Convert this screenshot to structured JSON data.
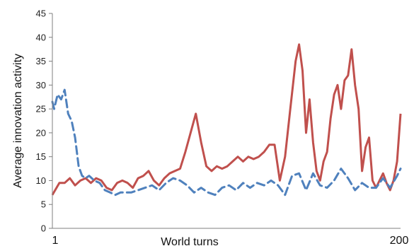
{
  "chart_data": {
    "type": "line",
    "xlabel": "World turns",
    "ylabel": "Average innovation activity",
    "xlim": [
      1,
      200
    ],
    "ylim": [
      0,
      45
    ],
    "y_ticks": [
      "0",
      "5",
      "10",
      "15",
      "20",
      "25",
      "30",
      "35",
      "40",
      "45"
    ],
    "x_tick_labels": [
      "1",
      "200"
    ],
    "grid": false,
    "legend": "none",
    "series": [
      {
        "color": "#c0504d",
        "style": "solid",
        "x": [
          1,
          5,
          8,
          11,
          14,
          17,
          20,
          23,
          26,
          29,
          32,
          35,
          38,
          41,
          44,
          47,
          50,
          53,
          56,
          59,
          62,
          65,
          68,
          71,
          74,
          77,
          80,
          83,
          86,
          89,
          92,
          95,
          98,
          101,
          104,
          107,
          110,
          113,
          116,
          119,
          122,
          125,
          128,
          131,
          134,
          137,
          140,
          142,
          144,
          146,
          148,
          150,
          152,
          154,
          156,
          158,
          160,
          162,
          164,
          166,
          168,
          170,
          172,
          174,
          176,
          178,
          180,
          182,
          184,
          186,
          188,
          190,
          192,
          194,
          196,
          198,
          200
        ],
        "values": [
          7,
          9.5,
          9.5,
          10.5,
          9,
          10,
          10.5,
          9.5,
          10.5,
          10,
          8.5,
          8,
          9.5,
          10,
          9.5,
          8.5,
          10.5,
          11,
          12,
          10,
          9,
          10.5,
          11.5,
          12,
          12.5,
          16,
          20,
          24,
          18,
          13,
          12,
          13,
          12.5,
          13,
          14,
          15,
          14,
          15,
          14.5,
          15,
          16,
          17.5,
          17.5,
          10,
          15,
          25,
          35,
          38.5,
          33,
          20,
          27,
          18,
          12,
          10,
          14,
          16,
          23,
          28,
          30,
          25,
          31,
          32,
          37.5,
          30,
          25,
          12,
          17,
          19,
          10,
          8.5,
          10,
          11.5,
          9.5,
          8,
          10,
          14,
          24
        ]
      },
      {
        "color": "#4f81bd",
        "style": "dashed",
        "x": [
          1,
          2,
          4,
          6,
          8,
          10,
          12,
          14,
          16,
          18,
          20,
          22,
          25,
          28,
          31,
          34,
          37,
          40,
          43,
          46,
          50,
          54,
          58,
          62,
          66,
          70,
          74,
          78,
          82,
          86,
          90,
          94,
          98,
          102,
          106,
          110,
          114,
          118,
          122,
          126,
          130,
          134,
          138,
          142,
          146,
          150,
          154,
          158,
          162,
          166,
          170,
          174,
          178,
          182,
          186,
          190,
          194,
          198,
          200
        ],
        "values": [
          26.5,
          25,
          28,
          27,
          29,
          24,
          22.5,
          19,
          13,
          11,
          10.5,
          11,
          10,
          9.5,
          8,
          7.5,
          7,
          7.5,
          7.5,
          7.5,
          8,
          8.5,
          9,
          8,
          9.5,
          10.5,
          10,
          9,
          7.5,
          8.5,
          7.5,
          7,
          8.5,
          9,
          8,
          9.5,
          8.5,
          9.5,
          9,
          10,
          9,
          7,
          11,
          11.5,
          8,
          11.5,
          9,
          8.5,
          10,
          12.5,
          10.5,
          8,
          9.5,
          8.5,
          8.5,
          10.5,
          8.5,
          11,
          12.5
        ]
      }
    ]
  }
}
